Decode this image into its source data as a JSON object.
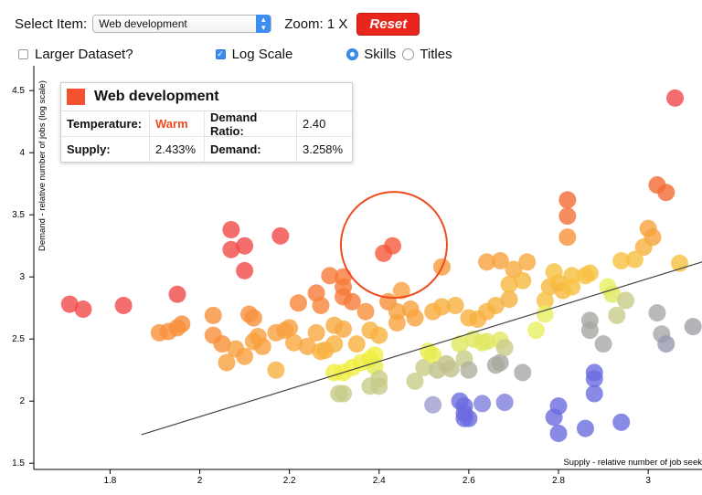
{
  "controls": {
    "select_label": "Select Item:",
    "selected_item": "Web development",
    "zoom_label": "Zoom: 1 X",
    "reset_label": "Reset",
    "larger_dataset_label": "Larger Dataset?",
    "larger_dataset_checked": false,
    "log_scale_label": "Log Scale",
    "log_scale_checked": true,
    "skills_label": "Skills",
    "titles_label": "Titles",
    "selected_radio": "Skills"
  },
  "tooltip": {
    "title": "Web development",
    "swatch_color": "#f4522e",
    "temperature_label": "Temperature:",
    "temperature_value": "Warm",
    "demand_ratio_label": "Demand Ratio:",
    "demand_ratio_value": "2.40",
    "supply_label": "Supply:",
    "supply_value": "2.433%",
    "demand_label": "Demand:",
    "demand_value": "3.258%"
  },
  "chart_data": {
    "type": "scatter",
    "xlabel": "Supply - relative number of job seek",
    "ylabel": "Demand - relative number of jobs (log scale)",
    "xlim": [
      1.63,
      3.12
    ],
    "ylim": [
      1.45,
      4.7
    ],
    "x_ticks": [
      1.8,
      2,
      2.2,
      2.4,
      2.6,
      2.8,
      3
    ],
    "y_ticks": [
      1.5,
      2,
      2.5,
      3,
      3.5,
      4,
      4.5
    ],
    "x_tick_labels": [
      "1.8",
      "2",
      "2.2",
      "2.4",
      "2.6",
      "2.8",
      "3"
    ],
    "y_tick_labels": [
      "1.5",
      "2",
      "2.5",
      "3",
      "3.5",
      "4",
      "4.5"
    ],
    "trendline": [
      [
        1.87,
        1.73
      ],
      [
        3.12,
        3.12
      ]
    ],
    "highlight": {
      "x": 2.433,
      "y": 3.258
    },
    "points": [
      {
        "x": 3.06,
        "y": 4.44,
        "c": "#f0484a"
      },
      {
        "x": 2.07,
        "y": 3.38,
        "c": "#f04a48"
      },
      {
        "x": 2.18,
        "y": 3.33,
        "c": "#f04a48"
      },
      {
        "x": 2.07,
        "y": 3.22,
        "c": "#f04a48"
      },
      {
        "x": 2.1,
        "y": 3.25,
        "c": "#f04a48"
      },
      {
        "x": 2.1,
        "y": 3.05,
        "c": "#f04a48"
      },
      {
        "x": 1.71,
        "y": 2.78,
        "c": "#f04a48"
      },
      {
        "x": 1.74,
        "y": 2.74,
        "c": "#f04a48"
      },
      {
        "x": 1.83,
        "y": 2.77,
        "c": "#f04a48"
      },
      {
        "x": 1.95,
        "y": 2.86,
        "c": "#f04a48"
      },
      {
        "x": 2.41,
        "y": 3.19,
        "c": "#f45a3a"
      },
      {
        "x": 2.43,
        "y": 3.25,
        "c": "#f45a3a"
      },
      {
        "x": 3.02,
        "y": 3.74,
        "c": "#f46a34"
      },
      {
        "x": 3.04,
        "y": 3.68,
        "c": "#f46a34"
      },
      {
        "x": 2.82,
        "y": 3.62,
        "c": "#f46a34"
      },
      {
        "x": 2.82,
        "y": 3.49,
        "c": "#f47038"
      },
      {
        "x": 2.82,
        "y": 3.32,
        "c": "#f6923a"
      },
      {
        "x": 3.0,
        "y": 3.39,
        "c": "#f6a23c"
      },
      {
        "x": 3.01,
        "y": 3.32,
        "c": "#f6a23c"
      },
      {
        "x": 2.99,
        "y": 3.24,
        "c": "#f8b03e"
      },
      {
        "x": 2.54,
        "y": 3.08,
        "c": "#f89a3c"
      },
      {
        "x": 2.64,
        "y": 3.12,
        "c": "#f8a23e"
      },
      {
        "x": 2.67,
        "y": 3.13,
        "c": "#f8a23e"
      },
      {
        "x": 2.7,
        "y": 3.06,
        "c": "#f8aa3e"
      },
      {
        "x": 2.73,
        "y": 3.12,
        "c": "#f8aa3e"
      },
      {
        "x": 2.29,
        "y": 3.01,
        "c": "#f67a3a"
      },
      {
        "x": 2.32,
        "y": 3.0,
        "c": "#f67a3a"
      },
      {
        "x": 2.32,
        "y": 2.92,
        "c": "#f67a3a"
      },
      {
        "x": 2.32,
        "y": 2.84,
        "c": "#f67a3a"
      },
      {
        "x": 2.34,
        "y": 2.8,
        "c": "#f67a3a"
      },
      {
        "x": 2.26,
        "y": 2.87,
        "c": "#f67a3a"
      },
      {
        "x": 2.22,
        "y": 2.79,
        "c": "#f8843a"
      },
      {
        "x": 2.27,
        "y": 2.77,
        "c": "#f8843a"
      },
      {
        "x": 2.37,
        "y": 2.72,
        "c": "#f8903c"
      },
      {
        "x": 2.42,
        "y": 2.8,
        "c": "#f8903c"
      },
      {
        "x": 2.45,
        "y": 2.89,
        "c": "#f8a23e"
      },
      {
        "x": 2.44,
        "y": 2.72,
        "c": "#f8a23e"
      },
      {
        "x": 2.44,
        "y": 2.63,
        "c": "#f8a23e"
      },
      {
        "x": 2.47,
        "y": 2.74,
        "c": "#f8a23e"
      },
      {
        "x": 2.48,
        "y": 2.67,
        "c": "#f8a23e"
      },
      {
        "x": 2.52,
        "y": 2.72,
        "c": "#f8aa3e"
      },
      {
        "x": 2.54,
        "y": 2.76,
        "c": "#f8b03e"
      },
      {
        "x": 2.57,
        "y": 2.77,
        "c": "#f8b03e"
      },
      {
        "x": 2.6,
        "y": 2.67,
        "c": "#f8b03e"
      },
      {
        "x": 2.62,
        "y": 2.66,
        "c": "#f8b03e"
      },
      {
        "x": 2.64,
        "y": 2.72,
        "c": "#f8b03e"
      },
      {
        "x": 2.66,
        "y": 2.77,
        "c": "#f8b03e"
      },
      {
        "x": 2.69,
        "y": 2.82,
        "c": "#f8b03e"
      },
      {
        "x": 2.72,
        "y": 2.97,
        "c": "#f8b83e"
      },
      {
        "x": 2.69,
        "y": 2.94,
        "c": "#f8b83e"
      },
      {
        "x": 2.78,
        "y": 2.92,
        "c": "#f8b83e"
      },
      {
        "x": 2.8,
        "y": 2.95,
        "c": "#f8b83e"
      },
      {
        "x": 2.81,
        "y": 2.89,
        "c": "#f8b83e"
      },
      {
        "x": 2.79,
        "y": 3.04,
        "c": "#f8c03e"
      },
      {
        "x": 2.83,
        "y": 3.01,
        "c": "#f8c03e"
      },
      {
        "x": 2.87,
        "y": 3.03,
        "c": "#f8c03e"
      },
      {
        "x": 2.83,
        "y": 2.92,
        "c": "#f8c03e"
      },
      {
        "x": 2.77,
        "y": 2.81,
        "c": "#f8c03e"
      },
      {
        "x": 2.86,
        "y": 3.01,
        "c": "#f8c03e"
      },
      {
        "x": 2.94,
        "y": 3.13,
        "c": "#f8c03e"
      },
      {
        "x": 2.97,
        "y": 3.14,
        "c": "#f8c03e"
      },
      {
        "x": 3.07,
        "y": 3.11,
        "c": "#f8c03e"
      },
      {
        "x": 1.91,
        "y": 2.55,
        "c": "#f8903c"
      },
      {
        "x": 1.93,
        "y": 2.56,
        "c": "#f8903c"
      },
      {
        "x": 1.95,
        "y": 2.59,
        "c": "#f8903c"
      },
      {
        "x": 1.96,
        "y": 2.62,
        "c": "#f8903c"
      },
      {
        "x": 2.03,
        "y": 2.69,
        "c": "#f8903c"
      },
      {
        "x": 2.03,
        "y": 2.53,
        "c": "#f8903c"
      },
      {
        "x": 2.05,
        "y": 2.46,
        "c": "#f8903c"
      },
      {
        "x": 2.06,
        "y": 2.31,
        "c": "#f8a03e"
      },
      {
        "x": 2.08,
        "y": 2.42,
        "c": "#f8a03e"
      },
      {
        "x": 2.1,
        "y": 2.36,
        "c": "#f8a03e"
      },
      {
        "x": 2.12,
        "y": 2.48,
        "c": "#f8a03e"
      },
      {
        "x": 2.11,
        "y": 2.7,
        "c": "#f8903c"
      },
      {
        "x": 2.12,
        "y": 2.67,
        "c": "#f8903c"
      },
      {
        "x": 2.13,
        "y": 2.52,
        "c": "#f8a03e"
      },
      {
        "x": 2.14,
        "y": 2.44,
        "c": "#f8a03e"
      },
      {
        "x": 2.17,
        "y": 2.55,
        "c": "#f8a03e"
      },
      {
        "x": 2.19,
        "y": 2.57,
        "c": "#f8a03e"
      },
      {
        "x": 2.2,
        "y": 2.59,
        "c": "#f8a03e"
      },
      {
        "x": 2.17,
        "y": 2.25,
        "c": "#f8b03e"
      },
      {
        "x": 2.21,
        "y": 2.47,
        "c": "#f8a83e"
      },
      {
        "x": 2.24,
        "y": 2.44,
        "c": "#f8a83e"
      },
      {
        "x": 2.26,
        "y": 2.55,
        "c": "#f8a83e"
      },
      {
        "x": 2.27,
        "y": 2.4,
        "c": "#f8b03e"
      },
      {
        "x": 2.28,
        "y": 2.41,
        "c": "#f8b03e"
      },
      {
        "x": 2.3,
        "y": 2.61,
        "c": "#f8a83e"
      },
      {
        "x": 2.32,
        "y": 2.58,
        "c": "#f8a83e"
      },
      {
        "x": 2.3,
        "y": 2.46,
        "c": "#f8b03e"
      },
      {
        "x": 2.35,
        "y": 2.46,
        "c": "#f8b03e"
      },
      {
        "x": 2.38,
        "y": 2.57,
        "c": "#f8b03e"
      },
      {
        "x": 2.4,
        "y": 2.53,
        "c": "#f8b03e"
      },
      {
        "x": 2.3,
        "y": 2.23,
        "c": "#f0ee40"
      },
      {
        "x": 2.32,
        "y": 2.23,
        "c": "#f0ee40"
      },
      {
        "x": 2.34,
        "y": 2.27,
        "c": "#f0ee40"
      },
      {
        "x": 2.36,
        "y": 2.31,
        "c": "#f0ee40"
      },
      {
        "x": 2.38,
        "y": 2.34,
        "c": "#f0ee40"
      },
      {
        "x": 2.39,
        "y": 2.37,
        "c": "#f0ee40"
      },
      {
        "x": 2.39,
        "y": 2.28,
        "c": "#e6ec50"
      },
      {
        "x": 2.4,
        "y": 2.18,
        "c": "#c8cc88"
      },
      {
        "x": 2.38,
        "y": 2.12,
        "c": "#c8cc88"
      },
      {
        "x": 2.4,
        "y": 2.12,
        "c": "#c8cc88"
      },
      {
        "x": 2.31,
        "y": 2.06,
        "c": "#c8cc88"
      },
      {
        "x": 2.32,
        "y": 2.06,
        "c": "#c8cc88"
      },
      {
        "x": 2.48,
        "y": 2.16,
        "c": "#c8cc88"
      },
      {
        "x": 2.5,
        "y": 2.27,
        "c": "#c8cc88"
      },
      {
        "x": 2.51,
        "y": 2.4,
        "c": "#e6ec50"
      },
      {
        "x": 2.52,
        "y": 2.37,
        "c": "#e6ec50"
      },
      {
        "x": 2.53,
        "y": 2.25,
        "c": "#c0c08c"
      },
      {
        "x": 2.55,
        "y": 2.3,
        "c": "#c0c08c"
      },
      {
        "x": 2.56,
        "y": 2.26,
        "c": "#c0c08c"
      },
      {
        "x": 2.58,
        "y": 2.46,
        "c": "#e0e860"
      },
      {
        "x": 2.59,
        "y": 2.34,
        "c": "#c8cc88"
      },
      {
        "x": 2.6,
        "y": 2.25,
        "c": "#b0b09c"
      },
      {
        "x": 2.61,
        "y": 2.5,
        "c": "#e0e860"
      },
      {
        "x": 2.63,
        "y": 2.47,
        "c": "#e0e860"
      },
      {
        "x": 2.64,
        "y": 2.48,
        "c": "#e0e860"
      },
      {
        "x": 2.66,
        "y": 2.29,
        "c": "#a8a8a0"
      },
      {
        "x": 2.67,
        "y": 2.31,
        "c": "#a8a8a0"
      },
      {
        "x": 2.67,
        "y": 2.49,
        "c": "#e0e860"
      },
      {
        "x": 2.68,
        "y": 2.43,
        "c": "#c8cc88"
      },
      {
        "x": 2.72,
        "y": 2.23,
        "c": "#a8a8a8"
      },
      {
        "x": 2.75,
        "y": 2.57,
        "c": "#e8f060"
      },
      {
        "x": 2.77,
        "y": 2.7,
        "c": "#e8f060"
      },
      {
        "x": 2.91,
        "y": 2.92,
        "c": "#e8f060"
      },
      {
        "x": 2.92,
        "y": 2.86,
        "c": "#e0e860"
      },
      {
        "x": 2.93,
        "y": 2.69,
        "c": "#c8cc88"
      },
      {
        "x": 2.95,
        "y": 2.81,
        "c": "#c8cc88"
      },
      {
        "x": 2.87,
        "y": 2.65,
        "c": "#a8a8a0"
      },
      {
        "x": 2.87,
        "y": 2.57,
        "c": "#a8a8a0"
      },
      {
        "x": 2.9,
        "y": 2.46,
        "c": "#a8a8a8"
      },
      {
        "x": 3.02,
        "y": 2.71,
        "c": "#a8a8a8"
      },
      {
        "x": 3.03,
        "y": 2.54,
        "c": "#a8a8a8"
      },
      {
        "x": 3.04,
        "y": 2.46,
        "c": "#9898b0"
      },
      {
        "x": 3.1,
        "y": 2.6,
        "c": "#a0a0a8"
      },
      {
        "x": 2.52,
        "y": 1.97,
        "c": "#9c9cd0"
      },
      {
        "x": 2.58,
        "y": 2.0,
        "c": "#6c6ce0"
      },
      {
        "x": 2.59,
        "y": 1.96,
        "c": "#6c6ce0"
      },
      {
        "x": 2.59,
        "y": 1.9,
        "c": "#6c6ce0"
      },
      {
        "x": 2.6,
        "y": 1.86,
        "c": "#6c6ce0"
      },
      {
        "x": 2.59,
        "y": 1.86,
        "c": "#6c6ce0"
      },
      {
        "x": 2.63,
        "y": 1.98,
        "c": "#8080dc"
      },
      {
        "x": 2.68,
        "y": 1.99,
        "c": "#8080dc"
      },
      {
        "x": 2.79,
        "y": 1.87,
        "c": "#6c6ce0"
      },
      {
        "x": 2.8,
        "y": 1.96,
        "c": "#6c6ce0"
      },
      {
        "x": 2.8,
        "y": 1.74,
        "c": "#6c6ce0"
      },
      {
        "x": 2.86,
        "y": 1.78,
        "c": "#6c6ce0"
      },
      {
        "x": 2.88,
        "y": 2.23,
        "c": "#6c6ce0"
      },
      {
        "x": 2.88,
        "y": 2.18,
        "c": "#6c6ce0"
      },
      {
        "x": 2.88,
        "y": 2.06,
        "c": "#6c6ce0"
      },
      {
        "x": 2.94,
        "y": 1.83,
        "c": "#6c6ce0"
      }
    ]
  }
}
